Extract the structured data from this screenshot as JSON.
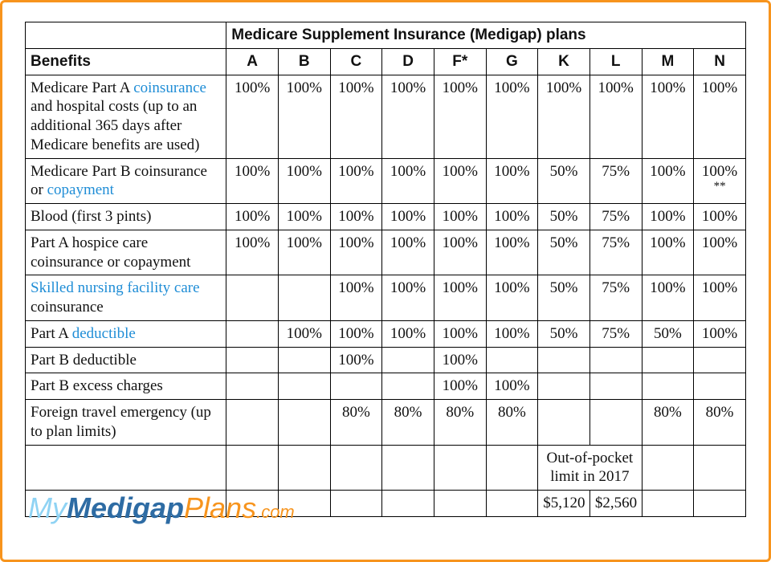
{
  "banner": "Medicare Supplement Insurance (Medigap) plans",
  "benefits_header": "Benefits",
  "plans": [
    "A",
    "B",
    "C",
    "D",
    "F*",
    "G",
    "K",
    "L",
    "M",
    "N"
  ],
  "link_color": "#1f8dd6",
  "banner_bg": "#1f6fae",
  "frame_border": "#f7941d",
  "rows": [
    {
      "label_parts": [
        {
          "t": "Medicare Part A "
        },
        {
          "t": "coinsurance",
          "link": true
        },
        {
          "t": " and hospital costs (up to an additional 365 days after Medicare benefits are used)"
        }
      ],
      "vals": [
        "100%",
        "100%",
        "100%",
        "100%",
        "100%",
        "100%",
        "100%",
        "100%",
        "100%",
        "100%"
      ]
    },
    {
      "label_parts": [
        {
          "t": "Medicare Part B coinsurance or "
        },
        {
          "t": "copayment",
          "link": true
        }
      ],
      "vals": [
        "100%",
        "100%",
        "100%",
        "100%",
        "100%",
        "100%",
        "50%",
        "75%",
        "100%",
        {
          "main": "100%",
          "sub": "**"
        }
      ]
    },
    {
      "label_parts": [
        {
          "t": "Blood (first 3 pints)"
        }
      ],
      "vals": [
        "100%",
        "100%",
        "100%",
        "100%",
        "100%",
        "100%",
        "50%",
        "75%",
        "100%",
        "100%"
      ]
    },
    {
      "label_parts": [
        {
          "t": "Part A hospice care coinsurance or copayment"
        }
      ],
      "vals": [
        "100%",
        "100%",
        "100%",
        "100%",
        "100%",
        "100%",
        "50%",
        "75%",
        "100%",
        "100%"
      ]
    },
    {
      "label_parts": [
        {
          "t": "Skilled nursing facility care",
          "link": true
        },
        {
          "t": " coinsurance"
        }
      ],
      "vals": [
        "",
        "",
        "100%",
        "100%",
        "100%",
        "100%",
        "50%",
        "75%",
        "100%",
        "100%"
      ]
    },
    {
      "label_parts": [
        {
          "t": "Part A "
        },
        {
          "t": "deductible",
          "link": true
        }
      ],
      "vals": [
        "",
        "100%",
        "100%",
        "100%",
        "100%",
        "100%",
        "50%",
        "75%",
        "50%",
        "100%"
      ]
    },
    {
      "label_parts": [
        {
          "t": "Part B deductible"
        }
      ],
      "vals": [
        "",
        "",
        "100%",
        "",
        "100%",
        "",
        "",
        "",
        "",
        ""
      ]
    },
    {
      "label_parts": [
        {
          "t": "Part B excess charges"
        }
      ],
      "vals": [
        "",
        "",
        "",
        "",
        "100%",
        "100%",
        "",
        "",
        "",
        ""
      ]
    },
    {
      "label_parts": [
        {
          "t": "Foreign travel emergency (up to plan limits)"
        }
      ],
      "vals": [
        "",
        "",
        "80%",
        "80%",
        "80%",
        "80%",
        "",
        "",
        "80%",
        "80%"
      ]
    }
  ],
  "oop": {
    "label": "Out-of-pocket limit in 2017",
    "K": "$5,120",
    "L": "$2,560"
  },
  "logo": {
    "my": "My",
    "med": "Medigap",
    "plans": "Plans",
    "dot": ".com"
  }
}
